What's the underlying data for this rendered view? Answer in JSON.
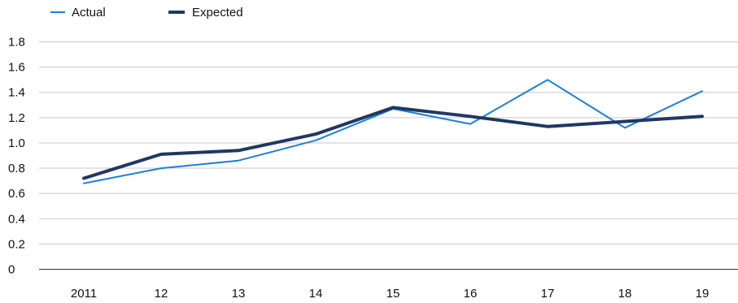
{
  "chart_data": {
    "type": "line",
    "title": "",
    "xlabel": "",
    "ylabel": "",
    "categories": [
      "2011",
      "12",
      "13",
      "14",
      "15",
      "16",
      "17",
      "18",
      "19"
    ],
    "y_ticks": [
      "0",
      "0.2",
      "0.4",
      "0.6",
      "0.8",
      "1.0",
      "1.2",
      "1.4",
      "1.6",
      "1.8"
    ],
    "ylim": [
      0,
      1.8
    ],
    "grid": true,
    "legend_position": "top-left",
    "series": [
      {
        "name": "Actual",
        "color": "#1a7fe0",
        "values": [
          0.68,
          0.8,
          0.86,
          1.02,
          1.27,
          1.15,
          1.5,
          1.12,
          1.41
        ]
      },
      {
        "name": "Expected",
        "color": "#1f3863",
        "values": [
          0.72,
          0.91,
          0.94,
          1.07,
          1.28,
          1.21,
          1.13,
          1.17,
          1.21
        ]
      }
    ]
  }
}
